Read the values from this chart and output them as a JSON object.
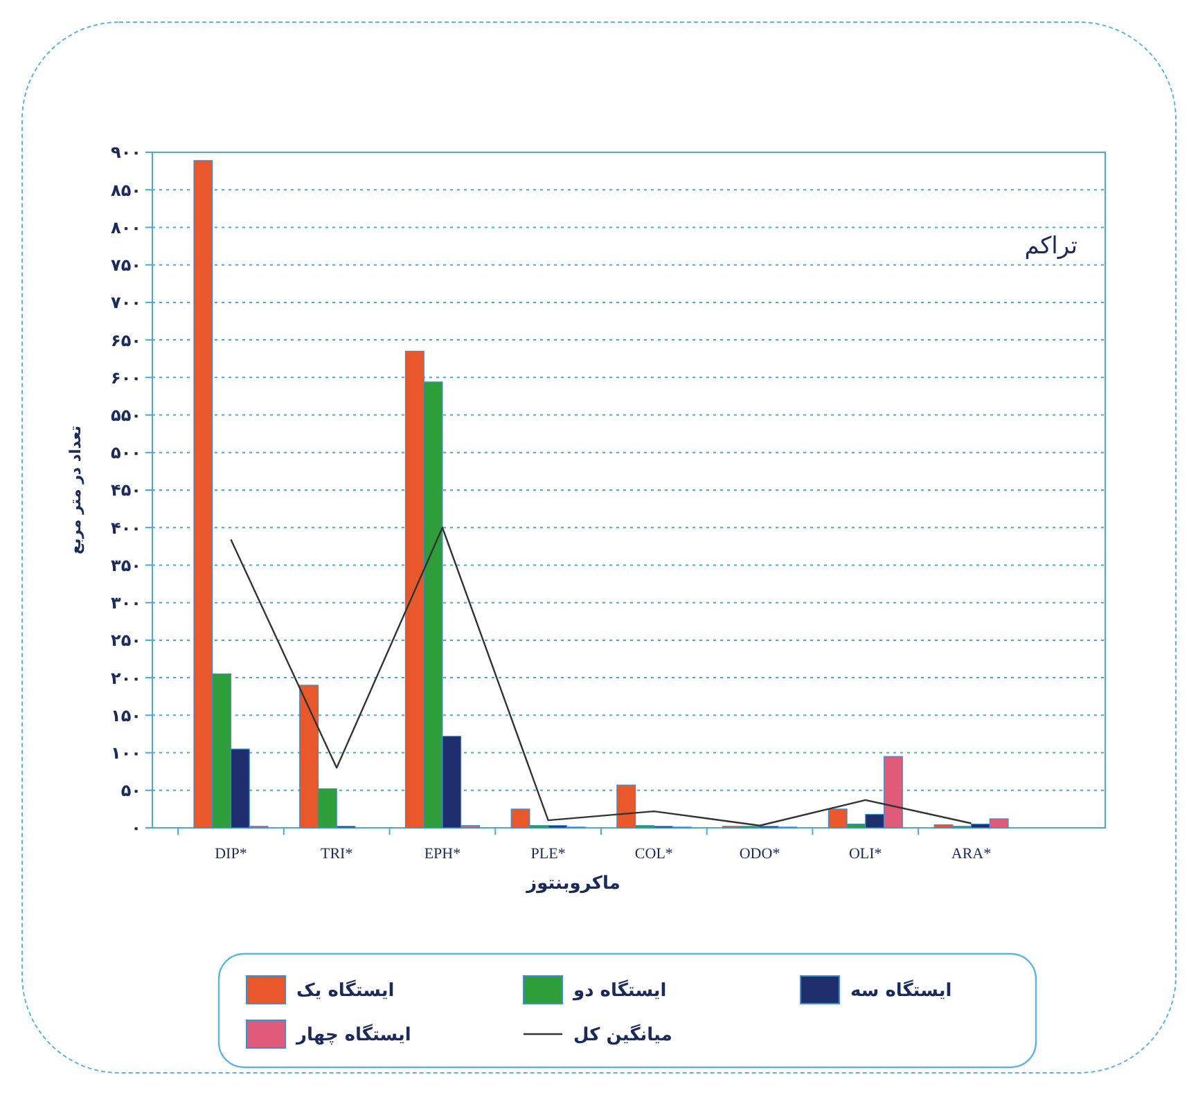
{
  "chart_data": {
    "type": "bar",
    "title": "تراکم",
    "xlabel": "ماکروبنتوز",
    "ylabel": "تعداد در متر مربع",
    "categories": [
      "DIP*",
      "TRI*",
      "EPH*",
      "PLE*",
      "COL*",
      "ODO*",
      "OLI*",
      "ARA*"
    ],
    "series": [
      {
        "name": "ایستگاه یک",
        "color": "#e8582a",
        "values": [
          889,
          190,
          635,
          25,
          57,
          2,
          25,
          4
        ]
      },
      {
        "name": "ایستگاه دو",
        "color": "#2e9e3a",
        "values": [
          205,
          52,
          594,
          3,
          3,
          2,
          5,
          2
        ]
      },
      {
        "name": "ایستگاه سه",
        "color": "#1f2f6e",
        "values": [
          105,
          2,
          122,
          3,
          2,
          2,
          18,
          5
        ]
      },
      {
        "name": "ایستگاه چهار",
        "color": "#e05a7a",
        "values": [
          2,
          0,
          3,
          1,
          1,
          1,
          95,
          12
        ]
      },
      {
        "name": "میانگین کل",
        "type": "line",
        "color": "#333333",
        "values": [
          384,
          80,
          400,
          10,
          22,
          3,
          37,
          6
        ]
      }
    ],
    "ylim": [
      0,
      900
    ],
    "yticks": [
      {
        "value": 0,
        "label": "۰"
      },
      {
        "value": 50,
        "label": "۵۰"
      },
      {
        "value": 100,
        "label": "۱۰۰"
      },
      {
        "value": 150,
        "label": "۱۵۰"
      },
      {
        "value": 200,
        "label": "۲۰۰"
      },
      {
        "value": 250,
        "label": "۲۵۰"
      },
      {
        "value": 300,
        "label": "۳۰۰"
      },
      {
        "value": 350,
        "label": "۳۵۰"
      },
      {
        "value": 400,
        "label": "۴۰۰"
      },
      {
        "value": 450,
        "label": "۴۵۰"
      },
      {
        "value": 500,
        "label": "۵۰۰"
      },
      {
        "value": 550,
        "label": "۵۵۰"
      },
      {
        "value": 600,
        "label": "۶۰۰"
      },
      {
        "value": 650,
        "label": "۶۵۰"
      },
      {
        "value": 700,
        "label": "۷۰۰"
      },
      {
        "value": 750,
        "label": "۷۵۰"
      },
      {
        "value": 800,
        "label": "۸۰۰"
      },
      {
        "value": 850,
        "label": "۸۵۰"
      },
      {
        "value": 900,
        "label": "۹۰۰"
      }
    ],
    "grid": "y",
    "legend": "bottom",
    "marker": "none",
    "line_style": "solid"
  }
}
